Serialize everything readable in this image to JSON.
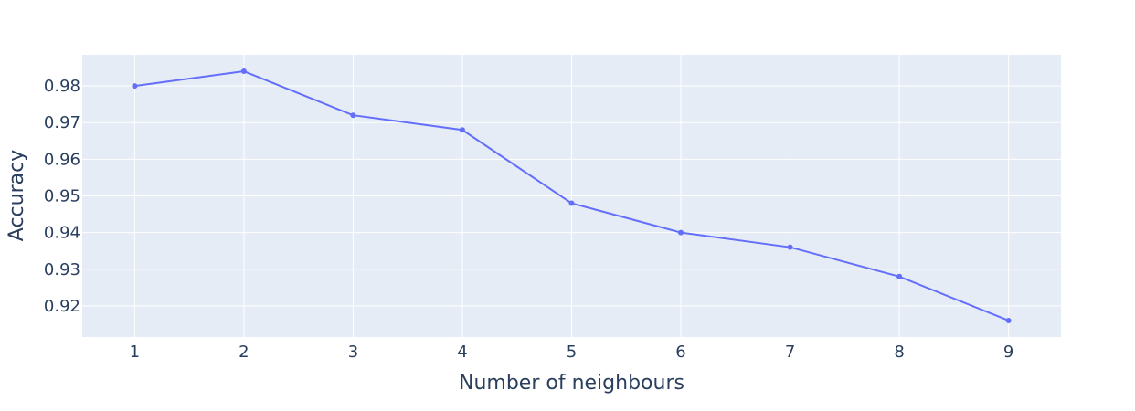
{
  "chart_data": {
    "type": "line",
    "xlabel": "Number of neighbours",
    "ylabel": "Accuracy",
    "x": [
      1,
      2,
      3,
      4,
      5,
      6,
      7,
      8,
      9
    ],
    "series": [
      {
        "values": [
          0.98,
          0.984,
          0.972,
          0.968,
          0.948,
          0.94,
          0.936,
          0.928,
          0.916
        ]
      }
    ],
    "xlim": [
      0.52,
      9.48
    ],
    "ylim": [
      0.9115,
      0.9885
    ],
    "x_ticks": [
      "1",
      "2",
      "3",
      "4",
      "5",
      "6",
      "7",
      "8",
      "9"
    ],
    "y_ticks": [
      "0.92",
      "0.93",
      "0.94",
      "0.95",
      "0.96",
      "0.97",
      "0.98"
    ],
    "grid": true,
    "legend": "none",
    "colors": {
      "plot_background": "#e5ecf6",
      "gridline": "#ffffff",
      "series_line": "#636efa",
      "text": "#2a3f5f"
    }
  }
}
